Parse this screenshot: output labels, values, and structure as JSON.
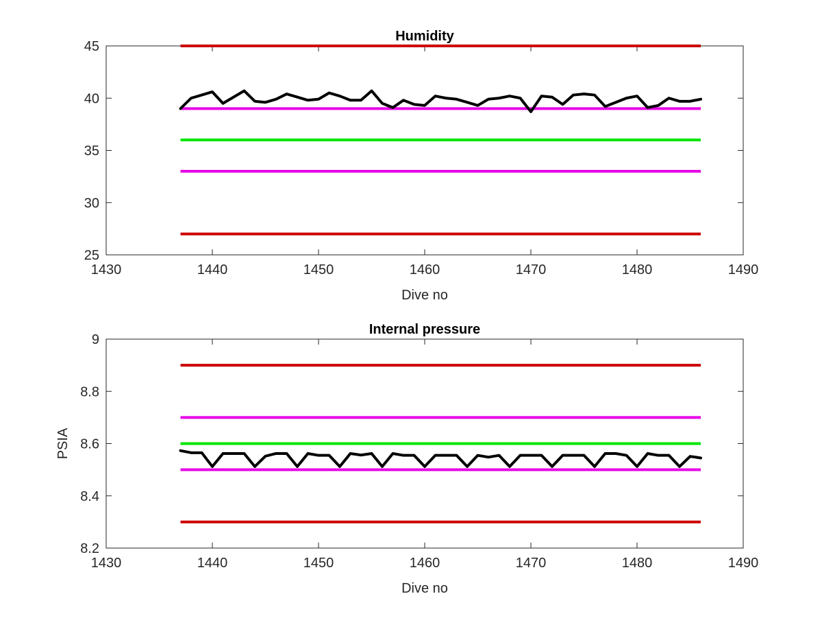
{
  "chart_data": [
    {
      "type": "line",
      "title": "Humidity",
      "xlabel": "Dive no",
      "ylabel": "",
      "xlim": [
        1430,
        1490
      ],
      "ylim": [
        25,
        45
      ],
      "xticks": [
        "1430",
        "1440",
        "1450",
        "1460",
        "1470",
        "1480",
        "1490"
      ],
      "yticks": [
        "25",
        "30",
        "35",
        "40",
        "45"
      ],
      "grid": false,
      "x": [
        1437,
        1438,
        1439,
        1440,
        1441,
        1442,
        1443,
        1444,
        1445,
        1446,
        1447,
        1448,
        1449,
        1450,
        1451,
        1452,
        1453,
        1454,
        1455,
        1456,
        1457,
        1458,
        1459,
        1460,
        1461,
        1462,
        1463,
        1464,
        1465,
        1466,
        1467,
        1468,
        1469,
        1470,
        1471,
        1472,
        1473,
        1474,
        1475,
        1476,
        1477,
        1478,
        1479,
        1480,
        1481,
        1482,
        1483,
        1484,
        1485,
        1486
      ],
      "series": [
        {
          "color": "#000000",
          "values": [
            39.0,
            40.0,
            40.3,
            40.6,
            39.5,
            40.1,
            40.7,
            39.7,
            39.6,
            39.9,
            40.4,
            40.1,
            39.8,
            39.9,
            40.5,
            40.2,
            39.8,
            39.8,
            40.7,
            39.5,
            39.1,
            39.8,
            39.4,
            39.3,
            40.2,
            40.0,
            39.9,
            39.6,
            39.3,
            39.9,
            40.0,
            40.2,
            40.0,
            38.7,
            40.2,
            40.1,
            39.4,
            40.3,
            40.4,
            40.3,
            39.2,
            39.6,
            40.0,
            40.2,
            39.1,
            39.3,
            40.0,
            39.7,
            39.7,
            39.9
          ]
        }
      ],
      "reference_lines": [
        {
          "value": 45,
          "x_range": [
            1437,
            1486
          ],
          "color": "#cc0000"
        },
        {
          "value": 39,
          "x_range": [
            1437,
            1486
          ],
          "color": "#e600e6"
        },
        {
          "value": 36,
          "x_range": [
            1437,
            1486
          ],
          "color": "#00e600"
        },
        {
          "value": 33,
          "x_range": [
            1437,
            1486
          ],
          "color": "#e600e6"
        },
        {
          "value": 27,
          "x_range": [
            1437,
            1486
          ],
          "color": "#cc0000"
        }
      ]
    },
    {
      "type": "line",
      "title": "Internal pressure",
      "xlabel": "Dive no",
      "ylabel": "PSIA",
      "xlim": [
        1430,
        1490
      ],
      "ylim": [
        8.2,
        9.0
      ],
      "xticks": [
        "1430",
        "1440",
        "1450",
        "1460",
        "1470",
        "1480",
        "1490"
      ],
      "yticks": [
        "8.2",
        "8.4",
        "8.6",
        "8.8",
        "9"
      ],
      "grid": false,
      "x": [
        1437,
        1438,
        1439,
        1440,
        1441,
        1442,
        1443,
        1444,
        1445,
        1446,
        1447,
        1448,
        1449,
        1450,
        1451,
        1452,
        1453,
        1454,
        1455,
        1456,
        1457,
        1458,
        1459,
        1460,
        1461,
        1462,
        1463,
        1464,
        1465,
        1466,
        1467,
        1468,
        1469,
        1470,
        1471,
        1472,
        1473,
        1474,
        1475,
        1476,
        1477,
        1478,
        1479,
        1480,
        1481,
        1482,
        1483,
        1484,
        1485,
        1486
      ],
      "series": [
        {
          "color": "#000000",
          "values": [
            8.573,
            8.565,
            8.565,
            8.512,
            8.562,
            8.562,
            8.562,
            8.512,
            8.552,
            8.562,
            8.562,
            8.512,
            8.562,
            8.555,
            8.555,
            8.512,
            8.562,
            8.556,
            8.562,
            8.512,
            8.562,
            8.555,
            8.555,
            8.512,
            8.555,
            8.555,
            8.555,
            8.512,
            8.555,
            8.548,
            8.555,
            8.512,
            8.555,
            8.555,
            8.555,
            8.512,
            8.555,
            8.555,
            8.555,
            8.512,
            8.562,
            8.562,
            8.555,
            8.512,
            8.562,
            8.555,
            8.555,
            8.512,
            8.551,
            8.545
          ]
        }
      ],
      "reference_lines": [
        {
          "value": 8.9,
          "x_range": [
            1437,
            1486
          ],
          "color": "#cc0000"
        },
        {
          "value": 8.7,
          "x_range": [
            1437,
            1486
          ],
          "color": "#e600e6"
        },
        {
          "value": 8.6,
          "x_range": [
            1437,
            1486
          ],
          "color": "#00e600"
        },
        {
          "value": 8.5,
          "x_range": [
            1437,
            1486
          ],
          "color": "#e600e6"
        },
        {
          "value": 8.3,
          "x_range": [
            1437,
            1486
          ],
          "color": "#cc0000"
        }
      ]
    }
  ]
}
